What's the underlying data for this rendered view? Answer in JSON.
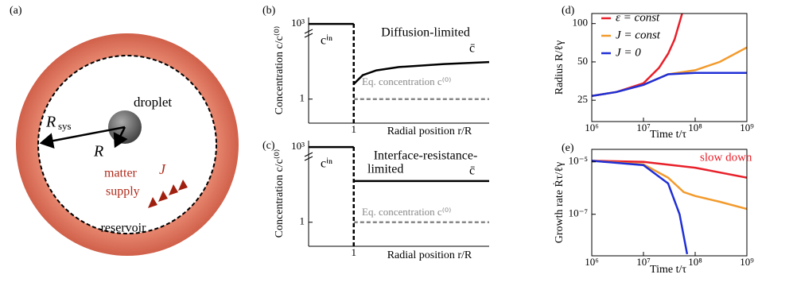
{
  "diagram": {
    "panel": "(a)",
    "droplet": "droplet",
    "R_sys": {
      "symbol": "R",
      "subscript": "sys"
    },
    "R": "R",
    "supply_label": [
      "matter",
      "supply"
    ],
    "flux": "J",
    "reservoir": "reservoir"
  },
  "chart_data": [
    {
      "type": "line",
      "panel": "(b)",
      "xlabel": "Radial position r/R",
      "ylabel": "Concentration c/c⁽⁰⁾",
      "annotations": [
        "Diffusion-limited"
      ],
      "xscale": "linear",
      "yscale": "log",
      "xlim": [
        0,
        4
      ],
      "ylim": [
        0.11,
        1800
      ],
      "xticks": [
        1
      ],
      "yticks": [
        {
          "value": 1000,
          "label": "10³"
        },
        1
      ],
      "series": [
        {
          "name": "cⁱⁿ",
          "color": "#000000",
          "x": [
            0,
            1
          ],
          "values": [
            1000,
            1000
          ]
        },
        {
          "name": "c̄",
          "color": "#000000",
          "x": [
            1,
            1.2,
            1.5,
            2,
            3,
            4
          ],
          "values": [
            4,
            9,
            14,
            19,
            25,
            30
          ]
        },
        {
          "name": "Eq. concentration c⁽⁰⁾",
          "color": "#888888",
          "dashed": true,
          "x": [
            1,
            4
          ],
          "values": [
            1,
            1
          ]
        }
      ]
    },
    {
      "type": "line",
      "panel": "(c)",
      "xlabel": "Radial position r/R",
      "ylabel": "Concentration c/c⁽⁰⁾",
      "annotations": [
        "Interface-resistance-",
        "limited"
      ],
      "xscale": "linear",
      "yscale": "log",
      "xlim": [
        0,
        4
      ],
      "ylim": [
        0.11,
        1800
      ],
      "xticks": [
        1
      ],
      "yticks": [
        {
          "value": 1000,
          "label": "10³"
        },
        1
      ],
      "series": [
        {
          "name": "cⁱⁿ",
          "color": "#000000",
          "x": [
            0,
            1
          ],
          "values": [
            1000,
            1000
          ]
        },
        {
          "name": "c̄",
          "color": "#000000",
          "x": [
            1,
            4
          ],
          "values": [
            44,
            44
          ]
        },
        {
          "name": "Eq. concentration c⁽⁰⁾",
          "color": "#888888",
          "dashed": true,
          "x": [
            1,
            4
          ],
          "values": [
            1,
            1
          ]
        }
      ]
    },
    {
      "type": "line",
      "panel": "(d)",
      "xlabel": "Time t/τ",
      "ylabel": "Radius R/ℓγ",
      "legend": "upper left",
      "xscale": "log",
      "yscale": "log",
      "xlim": [
        1000000,
        1000000000
      ],
      "ylim": [
        17,
        120
      ],
      "xticks": [
        {
          "value": 1000000,
          "label": "10⁶"
        },
        {
          "value": 10000000,
          "label": "10⁷"
        },
        {
          "value": 100000000,
          "label": "10⁸"
        },
        {
          "value": 1000000000,
          "label": "10⁹"
        }
      ],
      "yticks": [
        25,
        50,
        100
      ],
      "series": [
        {
          "name": "ε = const",
          "color": "#e8202a",
          "x": [
            1000000,
            3000000,
            10000000,
            20000000,
            30000000,
            40000000,
            56000000
          ],
          "values": [
            27,
            29,
            34,
            45,
            58,
            75,
            120
          ]
        },
        {
          "name": "J = const",
          "color": "#f39a2c",
          "x": [
            1000000,
            3000000,
            10000000,
            30000000,
            100000000,
            300000000,
            1000000000
          ],
          "values": [
            27,
            29,
            33,
            40,
            43,
            50,
            65
          ]
        },
        {
          "name": "J = 0",
          "color": "#1f2fd6",
          "x": [
            1000000,
            3000000,
            10000000,
            30000000,
            100000000,
            300000000,
            1000000000
          ],
          "values": [
            27,
            29,
            33,
            40,
            41,
            41,
            41
          ]
        }
      ]
    },
    {
      "type": "line",
      "panel": "(e)",
      "xlabel": "Time t/τ",
      "ylabel": "Growth rate Ṙτ/ℓγ",
      "annotations": [
        "slow down"
      ],
      "xscale": "log",
      "yscale": "log",
      "xlim": [
        1000000,
        1000000000
      ],
      "ylim": [
        2.6e-09,
        3e-05
      ],
      "xticks": [
        {
          "value": 1000000,
          "label": "10⁶"
        },
        {
          "value": 10000000,
          "label": "10⁷"
        },
        {
          "value": 100000000,
          "label": "10⁸"
        },
        {
          "value": 1000000000,
          "label": "10⁹"
        }
      ],
      "yticks": [
        {
          "value": 1e-05,
          "label": "10⁻⁵"
        },
        {
          "value": 1e-07,
          "label": "10⁻⁷"
        }
      ],
      "series": [
        {
          "name": "ε = const",
          "color": "#e8202a",
          "x": [
            1000000,
            10000000,
            100000000,
            1000000000
          ],
          "values": [
            1.1e-05,
            1e-05,
            6e-06,
            2.5e-06
          ]
        },
        {
          "name": "J = const",
          "color": "#f39a2c",
          "x": [
            1000000,
            10000000,
            30000000,
            60000000,
            100000000,
            300000000,
            1000000000
          ],
          "values": [
            1.1e-05,
            8e-06,
            2.5e-06,
            7e-07,
            5e-07,
            3e-07,
            1.6e-07
          ]
        },
        {
          "name": "J = 0",
          "color": "#1f2fd6",
          "x": [
            1000000,
            10000000,
            30000000,
            50000000,
            70000000
          ],
          "values": [
            1.1e-05,
            7.5e-06,
            1.5e-06,
            1e-07,
            3e-09
          ]
        }
      ]
    }
  ]
}
